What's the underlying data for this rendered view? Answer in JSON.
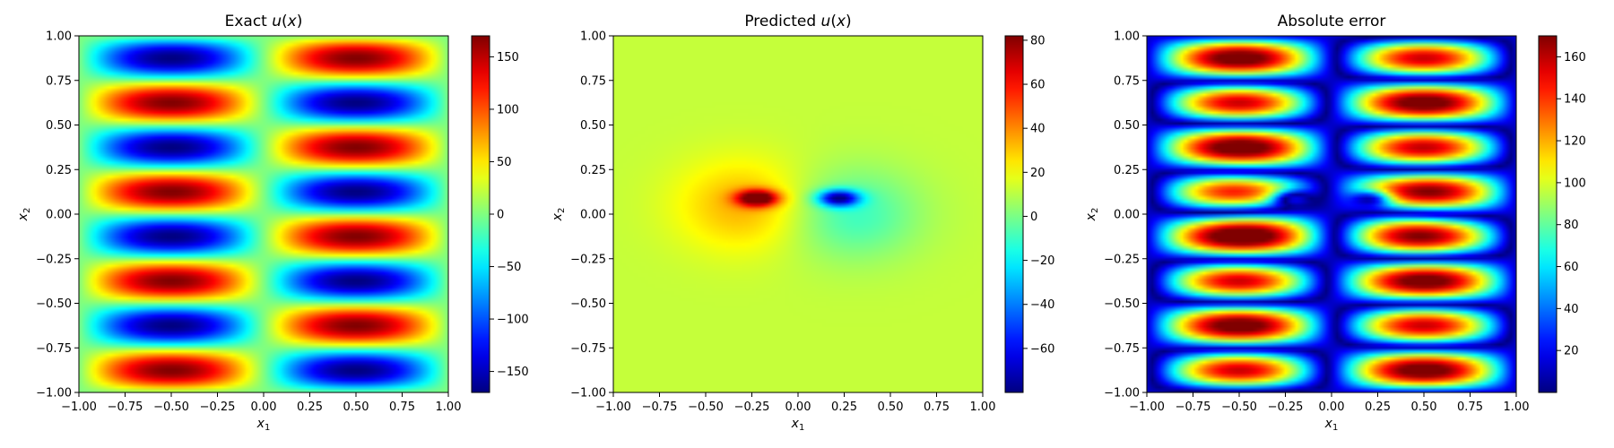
{
  "chart_data": [
    {
      "type": "heatmap",
      "title_text": "Exact ",
      "title_math": "u",
      "title_math_arg": "(x)",
      "xlabel": "x",
      "xlabel_sub": "1",
      "ylabel": "x",
      "ylabel_sub": "2",
      "xlim": [
        -1,
        1
      ],
      "ylim": [
        -1,
        1
      ],
      "xticks": [
        "−1.00",
        "−0.75",
        "−0.50",
        "−0.25",
        "0.00",
        "0.25",
        "0.50",
        "0.75",
        "1.00"
      ],
      "yticks": [
        "−1.00",
        "−0.75",
        "−0.50",
        "−0.25",
        "0.00",
        "0.25",
        "0.50",
        "0.75",
        "1.00"
      ],
      "colormap": "jet",
      "colorbar": {
        "min": -170,
        "max": 170,
        "ticks": [
          "−150",
          "−100",
          "−50",
          "0",
          "50",
          "100",
          "150"
        ],
        "tick_values": [
          -150,
          -100,
          -50,
          0,
          50,
          100,
          150
        ]
      },
      "field": "exact: u = -170*sin(pi*x1)*sin(4*pi*x2) (approx.)"
    },
    {
      "type": "heatmap",
      "title_text": "Predicted ",
      "title_math": "u",
      "title_math_arg": "(x)",
      "xlabel": "x",
      "xlabel_sub": "1",
      "ylabel": "x",
      "ylabel_sub": "2",
      "xlim": [
        -1,
        1
      ],
      "ylim": [
        -1,
        1
      ],
      "xticks": [
        "−1.00",
        "−0.75",
        "−0.50",
        "−0.25",
        "0.00",
        "0.25",
        "0.50",
        "0.75",
        "1.00"
      ],
      "yticks": [
        "−1.00",
        "−0.75",
        "−0.50",
        "−0.25",
        "0.00",
        "0.25",
        "0.50",
        "0.75",
        "1.00"
      ],
      "colormap": "jet",
      "colorbar": {
        "min": -80,
        "max": 82,
        "ticks": [
          "−60",
          "−40",
          "−20",
          "0",
          "20",
          "40",
          "60",
          "80"
        ],
        "tick_values": [
          -60,
          -40,
          -20,
          0,
          20,
          40,
          60,
          80
        ]
      },
      "field": "predicted: localized dipole near (±0.22, 0.09), peak ≈ ±80"
    },
    {
      "type": "heatmap",
      "title_text": "Absolute error",
      "title_math": "",
      "title_math_arg": "",
      "xlabel": "x",
      "xlabel_sub": "1",
      "ylabel": "x",
      "ylabel_sub": "2",
      "xlim": [
        -1,
        1
      ],
      "ylim": [
        -1,
        1
      ],
      "xticks": [
        "−1.00",
        "−0.75",
        "−0.50",
        "−0.25",
        "0.00",
        "0.25",
        "0.50",
        "0.75",
        "1.00"
      ],
      "yticks": [
        "−1.00",
        "−0.75",
        "−0.50",
        "−0.25",
        "0.00",
        "0.25",
        "0.50",
        "0.75",
        "1.00"
      ],
      "colormap": "jet",
      "colorbar": {
        "min": 0,
        "max": 170,
        "ticks": [
          "20",
          "40",
          "60",
          "80",
          "100",
          "120",
          "140",
          "160"
        ],
        "tick_values": [
          20,
          40,
          60,
          80,
          100,
          120,
          140,
          160
        ]
      },
      "field": "absolute error |exact - predicted|"
    }
  ]
}
